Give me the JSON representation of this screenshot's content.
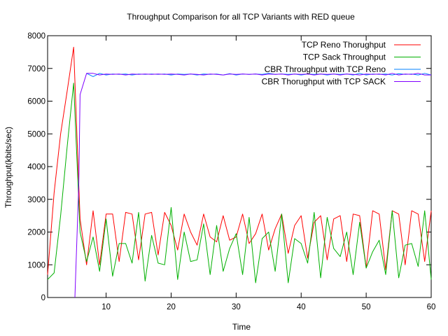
{
  "chart_data": {
    "type": "line",
    "title": "Throughput Comparison for all TCP Variants with RED queue",
    "xlabel": "Time",
    "ylabel": "Throughput(kbits/sec)",
    "xlim": [
      1,
      60
    ],
    "ylim": [
      0,
      8000
    ],
    "xticks": [
      10,
      20,
      30,
      40,
      50,
      60
    ],
    "yticks": [
      0,
      1000,
      2000,
      3000,
      4000,
      5000,
      6000,
      7000,
      8000
    ],
    "grid": false,
    "legend_position": "top-right",
    "series": [
      {
        "name": "TCP Reno Thorughput",
        "color": "#ff0000",
        "x": [
          1,
          2,
          3,
          4,
          5,
          6,
          7,
          8,
          9,
          10,
          11,
          12,
          13,
          14,
          15,
          16,
          17,
          18,
          19,
          20,
          21,
          22,
          23,
          24,
          25,
          26,
          27,
          28,
          29,
          30,
          31,
          32,
          33,
          34,
          35,
          36,
          37,
          38,
          39,
          40,
          41,
          42,
          43,
          44,
          45,
          46,
          47,
          48,
          49,
          50,
          51,
          52,
          53,
          54,
          55,
          56,
          57,
          58,
          59,
          60
        ],
        "y": [
          700,
          3200,
          5000,
          6300,
          7650,
          2400,
          1000,
          2650,
          1000,
          2550,
          2550,
          1100,
          2600,
          2550,
          1150,
          2550,
          2600,
          1300,
          2600,
          2200,
          1450,
          2550,
          2000,
          1600,
          2550,
          1850,
          1700,
          2500,
          1750,
          1850,
          2550,
          1650,
          1950,
          2550,
          1450,
          2100,
          2550,
          1350,
          2200,
          2500,
          1200,
          2300,
          2500,
          1150,
          2400,
          2500,
          1100,
          2550,
          2500,
          900,
          2650,
          2550,
          850,
          2650,
          2550,
          1000,
          2650,
          2550,
          1100,
          2650
        ]
      },
      {
        "name": "TCP Sack Throughput",
        "color": "#00b000",
        "x": [
          1,
          2,
          3,
          4,
          5,
          6,
          7,
          8,
          9,
          10,
          11,
          12,
          13,
          14,
          15,
          16,
          17,
          18,
          19,
          20,
          21,
          22,
          23,
          24,
          25,
          26,
          27,
          28,
          29,
          30,
          31,
          32,
          33,
          34,
          35,
          36,
          37,
          38,
          39,
          40,
          41,
          42,
          43,
          44,
          45,
          46,
          47,
          48,
          49,
          50,
          51,
          52,
          53,
          54,
          55,
          56,
          57,
          58,
          59,
          60
        ],
        "y": [
          550,
          750,
          2500,
          4600,
          6550,
          2000,
          1100,
          1850,
          800,
          2400,
          650,
          1650,
          1650,
          1050,
          2600,
          500,
          1900,
          1050,
          1000,
          2750,
          550,
          2000,
          1100,
          1150,
          2250,
          700,
          2200,
          800,
          1500,
          1950,
          700,
          2450,
          450,
          1800,
          2000,
          800,
          2550,
          450,
          1800,
          1650,
          1050,
          2600,
          600,
          2450,
          1500,
          1250,
          2000,
          700,
          2300,
          900,
          1400,
          1750,
          700,
          2650,
          600,
          1600,
          1650,
          950,
          2650,
          550
        ]
      },
      {
        "name": "CBR Throughput with TCP Reno",
        "color": "#0080ff",
        "x": [
          7,
          8,
          9,
          10,
          11,
          12,
          13,
          14,
          15,
          16,
          17,
          18,
          19,
          20,
          21,
          22,
          23,
          24,
          25,
          26,
          27,
          28,
          29,
          30,
          31,
          32,
          33,
          34,
          35,
          36,
          37,
          38,
          39,
          40,
          41,
          42,
          43,
          44,
          45,
          46,
          47,
          48,
          49,
          50,
          51,
          52,
          53,
          54,
          55,
          56,
          57,
          58,
          59,
          60
        ],
        "y": [
          6850,
          6750,
          6850,
          6800,
          6830,
          6820,
          6830,
          6800,
          6830,
          6820,
          6830,
          6820,
          6830,
          6800,
          6830,
          6820,
          6830,
          6800,
          6830,
          6820,
          6830,
          6800,
          6840,
          6800,
          6830,
          6820,
          6830,
          6820,
          6850,
          6820,
          6830,
          6820,
          6830,
          6800,
          6830,
          6820,
          6830,
          6800,
          6830,
          6820,
          6830,
          6800,
          6850,
          6800,
          6830,
          6820,
          6830,
          6800,
          6840,
          6820,
          6830,
          6800,
          6850,
          6800
        ]
      },
      {
        "name": "CBR Thorughput with TCP SACK",
        "color": "#8000ff",
        "x": [
          5.2,
          5.8,
          6,
          7,
          8,
          9,
          10,
          11,
          12,
          13,
          14,
          15,
          16,
          17,
          18,
          19,
          20,
          21,
          22,
          23,
          24,
          25,
          26,
          27,
          28,
          29,
          30,
          31,
          32,
          33,
          34,
          35,
          36,
          37,
          38,
          39,
          40,
          41,
          42,
          43,
          44,
          45,
          46,
          47,
          48,
          49,
          50,
          51,
          52,
          53,
          54,
          55,
          56,
          57,
          58,
          59,
          60
        ],
        "y": [
          0,
          3500,
          6200,
          6850,
          6850,
          6800,
          6830,
          6820,
          6830,
          6800,
          6830,
          6820,
          6830,
          6820,
          6830,
          6820,
          6830,
          6820,
          6800,
          6830,
          6820,
          6800,
          6830,
          6820,
          6800,
          6830,
          6820,
          6830,
          6820,
          6830,
          6800,
          6830,
          6820,
          6830,
          6800,
          6830,
          6820,
          6830,
          6800,
          6830,
          6820,
          6830,
          6800,
          6830,
          6820,
          6800,
          6830,
          6820,
          6830,
          6800,
          6850,
          6800,
          6830,
          6820,
          6850,
          6800,
          6800
        ]
      }
    ]
  }
}
